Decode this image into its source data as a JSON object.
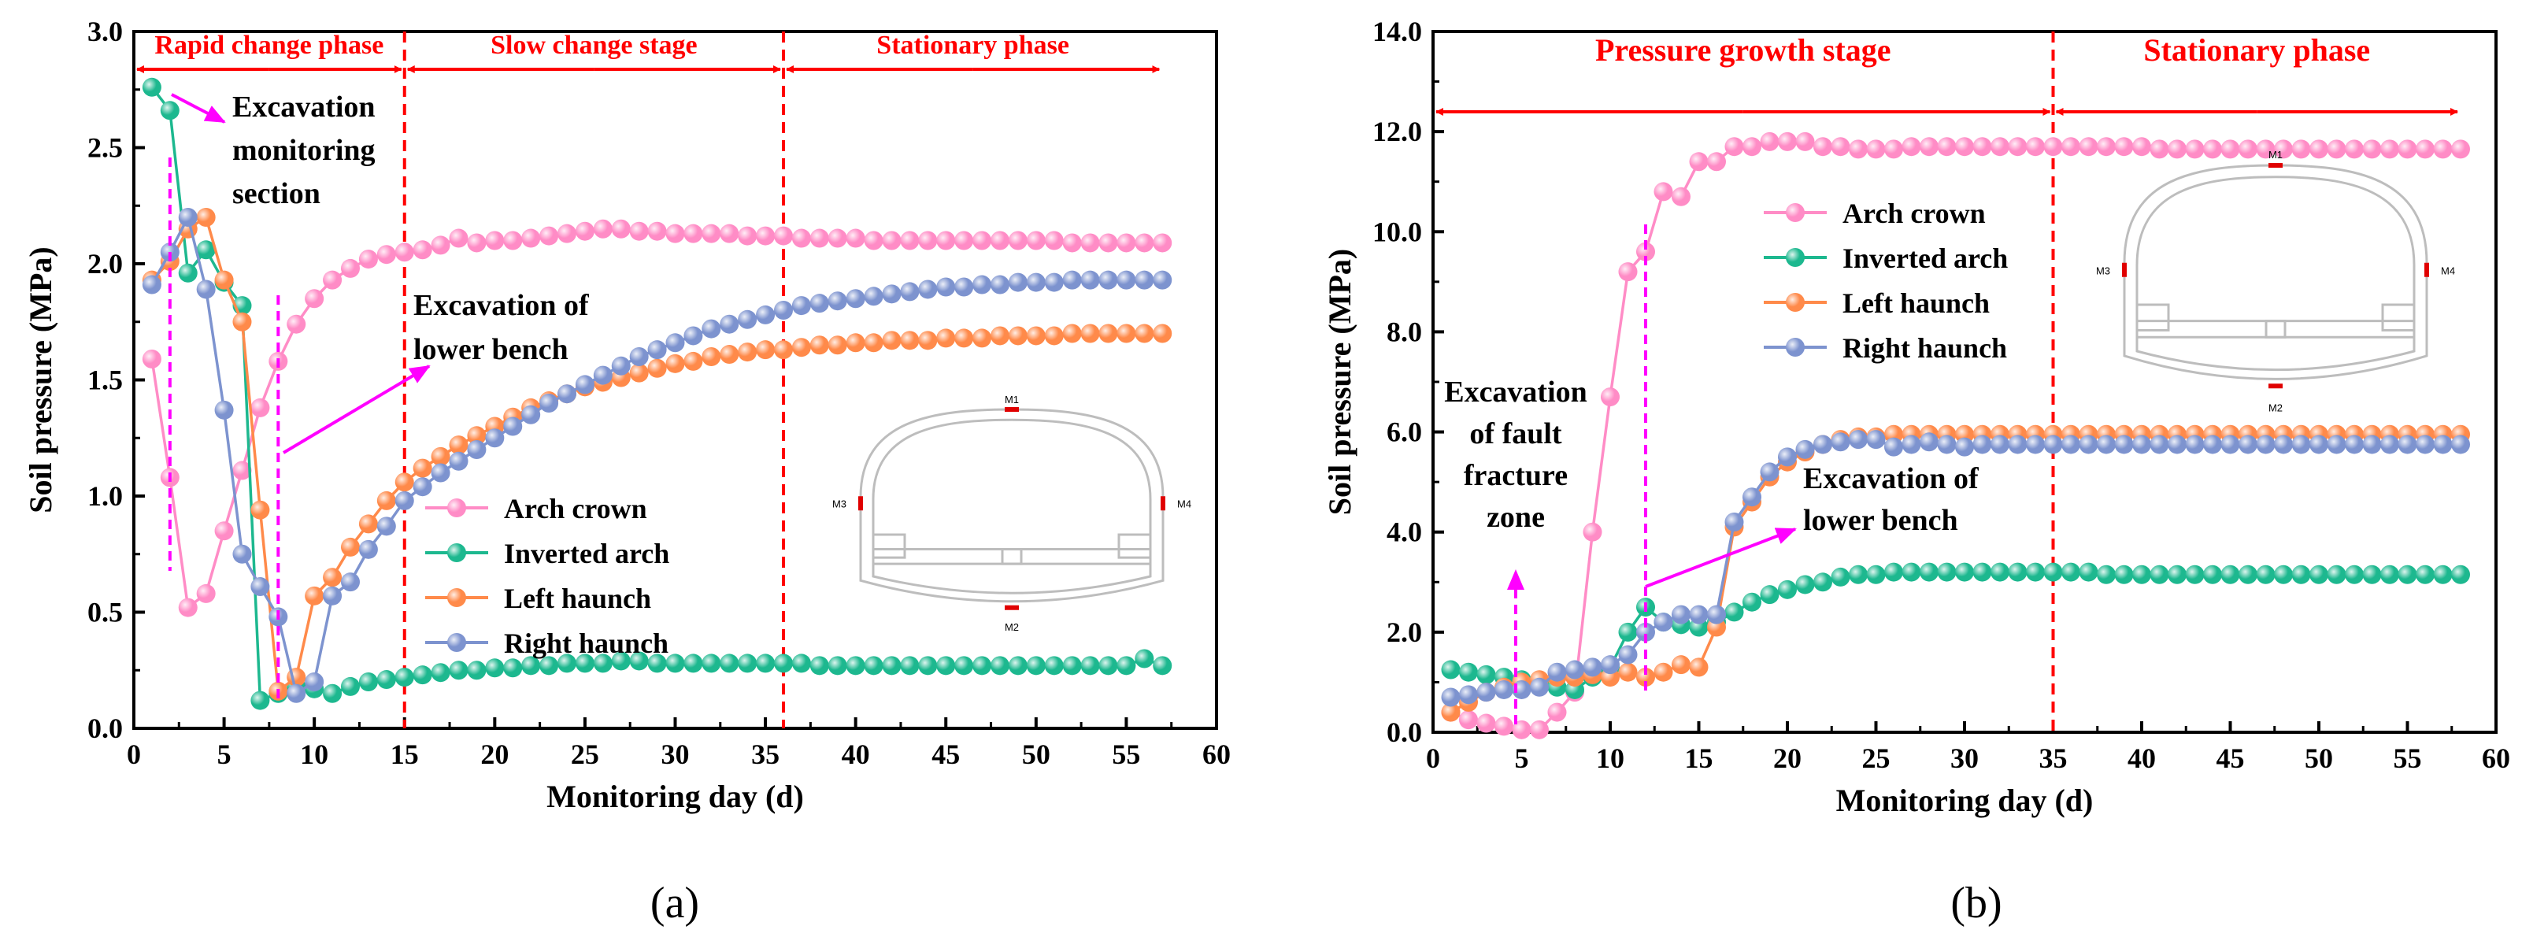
{
  "colors": {
    "arch_crown": "#ff8cc6",
    "inverted_arch": "#1db88f",
    "left_haunch": "#ff8a4a",
    "right_haunch": "#7d93cf",
    "phase_red": "#ff0000",
    "arrow_magenta": "#ff00ff"
  },
  "chart_data": [
    {
      "type": "line",
      "panel_label": "(a)",
      "title": "",
      "xlabel": "Monitoring day (d)",
      "ylabel": "Soil pressure (MPa)",
      "xlim": [
        0,
        60
      ],
      "ylim": [
        0,
        3.0
      ],
      "xticks": [
        "0",
        "5",
        "10",
        "15",
        "20",
        "25",
        "30",
        "35",
        "40",
        "45",
        "50",
        "55",
        "60"
      ],
      "yticks": [
        "0.0",
        "0.5",
        "1.0",
        "1.5",
        "2.0",
        "2.5",
        "3.0"
      ],
      "phases": [
        {
          "label": "Rapid change phase",
          "from": 0,
          "to": 15
        },
        {
          "label": "Slow change stage",
          "from": 15,
          "to": 36
        },
        {
          "label": "Stationary phase",
          "from": 36,
          "to": 57
        }
      ],
      "boundaries": [
        15,
        36
      ],
      "annotations": [
        {
          "text": [
            "Excavation",
            "monitoring",
            "section"
          ],
          "x": 2
        },
        {
          "text": [
            "Excavation of",
            "lower bench"
          ],
          "x": 8
        }
      ],
      "legend": [
        "Arch crown",
        "Inverted arch",
        "Left haunch",
        "Right haunch"
      ],
      "section_labels": [
        "M1",
        "M2",
        "M3",
        "M4"
      ],
      "series": [
        {
          "name": "Arch crown",
          "color_key": "arch_crown",
          "x": [
            1,
            2,
            3,
            4,
            5,
            6,
            7,
            8,
            9,
            10,
            11,
            12,
            13,
            14,
            15,
            16,
            17,
            18,
            19,
            20,
            21,
            22,
            23,
            24,
            25,
            26,
            27,
            28,
            29,
            30,
            31,
            32,
            33,
            34,
            35,
            36,
            37,
            38,
            39,
            40,
            41,
            42,
            43,
            44,
            45,
            46,
            47,
            48,
            49,
            50,
            51,
            52,
            53,
            54,
            55,
            56,
            57
          ],
          "values": [
            1.59,
            1.08,
            0.52,
            0.58,
            0.85,
            1.11,
            1.38,
            1.58,
            1.74,
            1.85,
            1.93,
            1.98,
            2.02,
            2.04,
            2.05,
            2.06,
            2.08,
            2.11,
            2.09,
            2.1,
            2.1,
            2.11,
            2.12,
            2.13,
            2.14,
            2.15,
            2.15,
            2.14,
            2.14,
            2.13,
            2.13,
            2.13,
            2.13,
            2.12,
            2.12,
            2.12,
            2.11,
            2.11,
            2.11,
            2.11,
            2.1,
            2.1,
            2.1,
            2.1,
            2.1,
            2.1,
            2.1,
            2.1,
            2.1,
            2.1,
            2.1,
            2.09,
            2.09,
            2.09,
            2.09,
            2.09,
            2.09
          ]
        },
        {
          "name": "Inverted arch",
          "color_key": "inverted_arch",
          "x": [
            1,
            2,
            3,
            4,
            5,
            6,
            7,
            8,
            9,
            10,
            11,
            12,
            13,
            14,
            15,
            16,
            17,
            18,
            19,
            20,
            21,
            22,
            23,
            24,
            25,
            26,
            27,
            28,
            29,
            30,
            31,
            32,
            33,
            34,
            35,
            36,
            37,
            38,
            39,
            40,
            41,
            42,
            43,
            44,
            45,
            46,
            47,
            48,
            49,
            50,
            51,
            52,
            53,
            54,
            55,
            56,
            57
          ],
          "values": [
            2.76,
            2.66,
            1.96,
            2.06,
            1.92,
            1.82,
            0.12,
            0.15,
            0.18,
            0.17,
            0.15,
            0.18,
            0.2,
            0.21,
            0.22,
            0.23,
            0.24,
            0.25,
            0.25,
            0.26,
            0.26,
            0.27,
            0.27,
            0.28,
            0.28,
            0.28,
            0.29,
            0.29,
            0.28,
            0.28,
            0.28,
            0.28,
            0.28,
            0.28,
            0.28,
            0.28,
            0.28,
            0.27,
            0.27,
            0.27,
            0.27,
            0.27,
            0.27,
            0.27,
            0.27,
            0.27,
            0.27,
            0.27,
            0.27,
            0.27,
            0.27,
            0.27,
            0.27,
            0.27,
            0.27,
            0.3,
            0.27
          ]
        },
        {
          "name": "Left haunch",
          "color_key": "left_haunch",
          "x": [
            1,
            2,
            3,
            4,
            5,
            6,
            7,
            8,
            9,
            10,
            11,
            12,
            13,
            14,
            15,
            16,
            17,
            18,
            19,
            20,
            21,
            22,
            23,
            24,
            25,
            26,
            27,
            28,
            29,
            30,
            31,
            32,
            33,
            34,
            35,
            36,
            37,
            38,
            39,
            40,
            41,
            42,
            43,
            44,
            45,
            46,
            47,
            48,
            49,
            50,
            51,
            52,
            53,
            54,
            55,
            56,
            57
          ],
          "values": [
            1.93,
            2.01,
            2.15,
            2.2,
            1.93,
            1.75,
            0.94,
            0.16,
            0.22,
            0.57,
            0.65,
            0.78,
            0.88,
            0.98,
            1.06,
            1.12,
            1.17,
            1.22,
            1.26,
            1.3,
            1.34,
            1.38,
            1.41,
            1.44,
            1.47,
            1.49,
            1.51,
            1.53,
            1.55,
            1.57,
            1.58,
            1.6,
            1.61,
            1.62,
            1.63,
            1.63,
            1.64,
            1.65,
            1.65,
            1.66,
            1.66,
            1.67,
            1.67,
            1.67,
            1.68,
            1.68,
            1.68,
            1.69,
            1.69,
            1.69,
            1.69,
            1.7,
            1.7,
            1.7,
            1.7,
            1.7,
            1.7
          ]
        },
        {
          "name": "Right haunch",
          "color_key": "right_haunch",
          "x": [
            1,
            2,
            3,
            4,
            5,
            6,
            7,
            8,
            9,
            10,
            11,
            12,
            13,
            14,
            15,
            16,
            17,
            18,
            19,
            20,
            21,
            22,
            23,
            24,
            25,
            26,
            27,
            28,
            29,
            30,
            31,
            32,
            33,
            34,
            35,
            36,
            37,
            38,
            39,
            40,
            41,
            42,
            43,
            44,
            45,
            46,
            47,
            48,
            49,
            50,
            51,
            52,
            53,
            54,
            55,
            56,
            57
          ],
          "values": [
            1.91,
            2.05,
            2.2,
            1.89,
            1.37,
            0.75,
            0.61,
            0.48,
            0.15,
            0.2,
            0.57,
            0.63,
            0.77,
            0.87,
            0.98,
            1.04,
            1.1,
            1.15,
            1.2,
            1.25,
            1.3,
            1.35,
            1.4,
            1.44,
            1.48,
            1.52,
            1.56,
            1.6,
            1.63,
            1.66,
            1.69,
            1.72,
            1.74,
            1.76,
            1.78,
            1.8,
            1.82,
            1.83,
            1.84,
            1.85,
            1.86,
            1.87,
            1.88,
            1.89,
            1.9,
            1.9,
            1.91,
            1.91,
            1.92,
            1.92,
            1.92,
            1.93,
            1.93,
            1.93,
            1.93,
            1.93,
            1.93
          ]
        }
      ]
    },
    {
      "type": "line",
      "panel_label": "(b)",
      "title": "",
      "xlabel": "Monitoring day (d)",
      "ylabel": "Soil pressure (MPa)",
      "xlim": [
        0,
        60
      ],
      "ylim": [
        0,
        14.0
      ],
      "xticks": [
        "0",
        "5",
        "10",
        "15",
        "20",
        "25",
        "30",
        "35",
        "40",
        "45",
        "50",
        "55",
        "60"
      ],
      "yticks": [
        "0.0",
        "2.0",
        "4.0",
        "6.0",
        "8.0",
        "10.0",
        "12.0",
        "14.0"
      ],
      "phases": [
        {
          "label": "Pressure growth stage",
          "from": 0,
          "to": 35
        },
        {
          "label": "Stationary phase",
          "from": 35,
          "to": 58
        }
      ],
      "boundaries": [
        35
      ],
      "annotations": [
        {
          "text": [
            "Excavation",
            "of fault",
            "fracture",
            "zone"
          ],
          "x": 5
        },
        {
          "text": [
            "Excavation of",
            "lower bench"
          ],
          "x": 12
        }
      ],
      "legend": [
        "Arch crown",
        "Inverted arch",
        "Left haunch",
        "Right haunch"
      ],
      "section_labels": [
        "M1",
        "M2",
        "M3",
        "M4"
      ],
      "series": [
        {
          "name": "Arch crown",
          "color_key": "arch_crown",
          "x": [
            1,
            2,
            3,
            4,
            5,
            6,
            7,
            8,
            9,
            10,
            11,
            12,
            13,
            14,
            15,
            16,
            17,
            18,
            19,
            20,
            21,
            22,
            23,
            24,
            25,
            26,
            27,
            28,
            29,
            30,
            31,
            32,
            33,
            34,
            35,
            36,
            37,
            38,
            39,
            40,
            41,
            42,
            43,
            44,
            45,
            46,
            47,
            48,
            49,
            50,
            51,
            52,
            53,
            54,
            55,
            56,
            57,
            58
          ],
          "values": [
            0.4,
            0.25,
            0.18,
            0.12,
            0.05,
            0.05,
            0.4,
            0.8,
            4.0,
            6.7,
            9.2,
            9.6,
            10.8,
            10.7,
            11.4,
            11.4,
            11.7,
            11.7,
            11.8,
            11.8,
            11.8,
            11.7,
            11.7,
            11.65,
            11.65,
            11.65,
            11.7,
            11.7,
            11.7,
            11.7,
            11.7,
            11.7,
            11.7,
            11.7,
            11.7,
            11.7,
            11.7,
            11.7,
            11.7,
            11.7,
            11.65,
            11.65,
            11.65,
            11.65,
            11.65,
            11.65,
            11.65,
            11.65,
            11.65,
            11.65,
            11.65,
            11.65,
            11.65,
            11.65,
            11.65,
            11.65,
            11.65,
            11.65
          ]
        },
        {
          "name": "Inverted arch",
          "color_key": "inverted_arch",
          "x": [
            1,
            2,
            3,
            4,
            5,
            6,
            7,
            8,
            9,
            10,
            11,
            12,
            13,
            14,
            15,
            16,
            17,
            18,
            19,
            20,
            21,
            22,
            23,
            24,
            25,
            26,
            27,
            28,
            29,
            30,
            31,
            32,
            33,
            34,
            35,
            36,
            37,
            38,
            39,
            40,
            41,
            42,
            43,
            44,
            45,
            46,
            47,
            48,
            49,
            50,
            51,
            52,
            53,
            54,
            55,
            56,
            57,
            58
          ],
          "values": [
            1.25,
            1.2,
            1.15,
            1.1,
            1.05,
            1.0,
            0.9,
            0.85,
            1.1,
            1.3,
            2.0,
            2.5,
            2.2,
            2.15,
            2.1,
            2.2,
            2.4,
            2.6,
            2.75,
            2.85,
            2.95,
            3.0,
            3.1,
            3.15,
            3.15,
            3.2,
            3.2,
            3.2,
            3.2,
            3.2,
            3.2,
            3.2,
            3.2,
            3.2,
            3.2,
            3.2,
            3.2,
            3.15,
            3.15,
            3.15,
            3.15,
            3.15,
            3.15,
            3.15,
            3.15,
            3.15,
            3.15,
            3.15,
            3.15,
            3.15,
            3.15,
            3.15,
            3.15,
            3.15,
            3.15,
            3.15,
            3.15,
            3.15
          ]
        },
        {
          "name": "Left haunch",
          "color_key": "left_haunch",
          "x": [
            1,
            2,
            3,
            4,
            5,
            6,
            7,
            8,
            9,
            10,
            11,
            12,
            13,
            14,
            15,
            16,
            17,
            18,
            19,
            20,
            21,
            22,
            23,
            24,
            25,
            26,
            27,
            28,
            29,
            30,
            31,
            32,
            33,
            34,
            35,
            36,
            37,
            38,
            39,
            40,
            41,
            42,
            43,
            44,
            45,
            46,
            47,
            48,
            49,
            50,
            51,
            52,
            53,
            54,
            55,
            56,
            57,
            58
          ],
          "values": [
            0.4,
            0.6,
            0.8,
            0.9,
            1.0,
            1.05,
            1.1,
            1.1,
            1.15,
            1.1,
            1.2,
            1.1,
            1.2,
            1.35,
            1.3,
            2.1,
            4.1,
            4.6,
            5.1,
            5.4,
            5.6,
            5.75,
            5.85,
            5.9,
            5.9,
            5.95,
            5.95,
            5.95,
            5.95,
            5.95,
            5.95,
            5.95,
            5.95,
            5.95,
            5.95,
            5.95,
            5.95,
            5.95,
            5.95,
            5.95,
            5.95,
            5.95,
            5.95,
            5.95,
            5.95,
            5.95,
            5.95,
            5.95,
            5.95,
            5.95,
            5.95,
            5.95,
            5.95,
            5.95,
            5.95,
            5.95,
            5.95,
            5.95
          ]
        },
        {
          "name": "Right haunch",
          "color_key": "right_haunch",
          "x": [
            1,
            2,
            3,
            4,
            5,
            6,
            7,
            8,
            9,
            10,
            11,
            12,
            13,
            14,
            15,
            16,
            17,
            18,
            19,
            20,
            21,
            22,
            23,
            24,
            25,
            26,
            27,
            28,
            29,
            30,
            31,
            32,
            33,
            34,
            35,
            36,
            37,
            38,
            39,
            40,
            41,
            42,
            43,
            44,
            45,
            46,
            47,
            48,
            49,
            50,
            51,
            52,
            53,
            54,
            55,
            56,
            57,
            58
          ],
          "values": [
            0.7,
            0.75,
            0.8,
            0.85,
            0.85,
            0.9,
            1.2,
            1.25,
            1.3,
            1.35,
            1.55,
            2.0,
            2.2,
            2.35,
            2.35,
            2.35,
            4.2,
            4.7,
            5.2,
            5.5,
            5.65,
            5.75,
            5.8,
            5.85,
            5.85,
            5.7,
            5.75,
            5.8,
            5.75,
            5.7,
            5.75,
            5.75,
            5.75,
            5.75,
            5.75,
            5.75,
            5.75,
            5.75,
            5.75,
            5.75,
            5.75,
            5.75,
            5.75,
            5.75,
            5.75,
            5.75,
            5.75,
            5.75,
            5.75,
            5.75,
            5.75,
            5.75,
            5.75,
            5.75,
            5.75,
            5.75,
            5.75,
            5.75
          ]
        }
      ]
    }
  ]
}
